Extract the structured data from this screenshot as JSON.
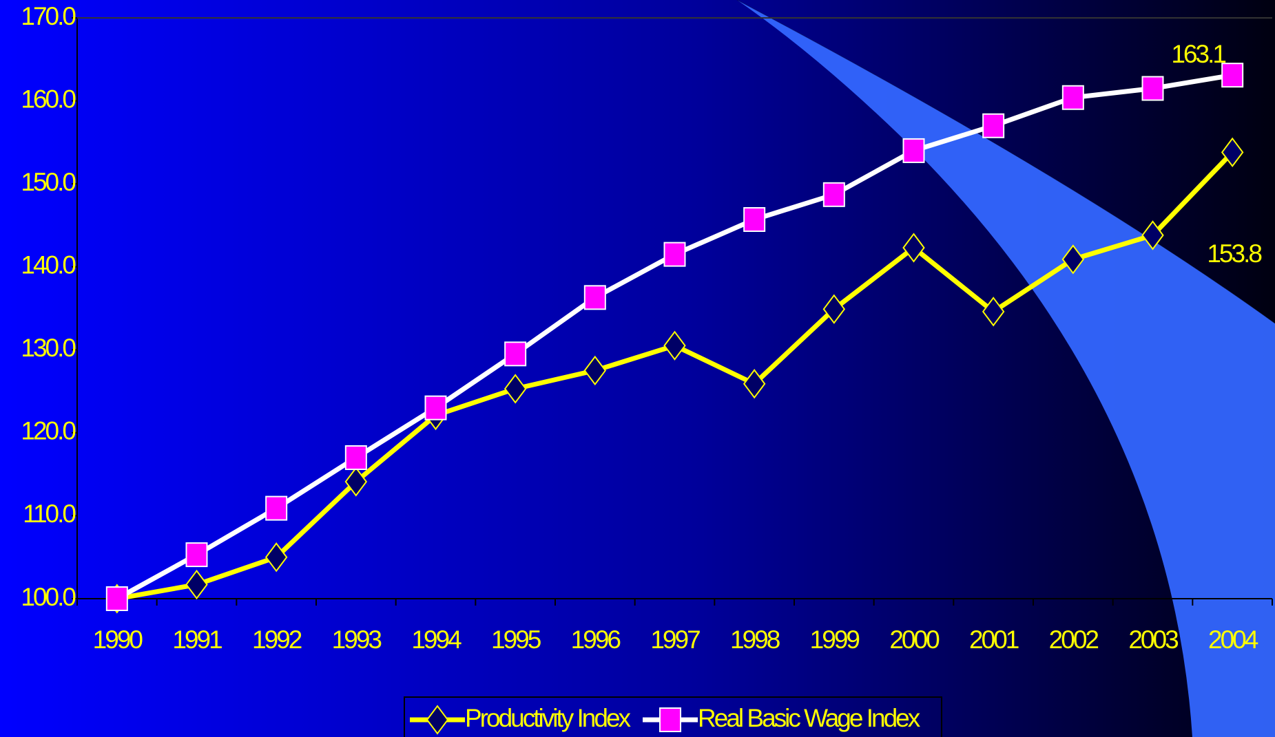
{
  "chart_data": {
    "type": "line",
    "categories": [
      "1990",
      "1991",
      "1992",
      "1993",
      "1994",
      "1995",
      "1996",
      "1997",
      "1998",
      "1999",
      "2000",
      "2001",
      "2002",
      "2003",
      "2004"
    ],
    "series": [
      {
        "name": "Productivity Index",
        "color": "#ffff00",
        "marker": "diamond",
        "values": [
          100.0,
          101.7,
          105.0,
          114.1,
          122.1,
          125.3,
          127.5,
          130.5,
          125.9,
          134.9,
          142.3,
          134.6,
          140.9,
          143.8,
          153.8
        ]
      },
      {
        "name": "Real Basic Wage Index",
        "color": "#ffffff",
        "marker": "square",
        "values": [
          100.0,
          105.3,
          110.9,
          117.0,
          123.0,
          129.5,
          136.3,
          141.5,
          145.7,
          148.7,
          154.0,
          157.0,
          160.4,
          161.5,
          163.1
        ]
      }
    ],
    "ylim": [
      100,
      170
    ],
    "yticks": [
      {
        "value": 100,
        "label": "100.0"
      },
      {
        "value": 110,
        "label": "110.0"
      },
      {
        "value": 120,
        "label": "120.0"
      },
      {
        "value": 130,
        "label": "130.0"
      },
      {
        "value": 140,
        "label": "140.0"
      },
      {
        "value": 150,
        "label": "150.0"
      },
      {
        "value": 160,
        "label": "160.0"
      },
      {
        "value": 170,
        "label": "170.0"
      }
    ],
    "legend": "bottom"
  }
}
